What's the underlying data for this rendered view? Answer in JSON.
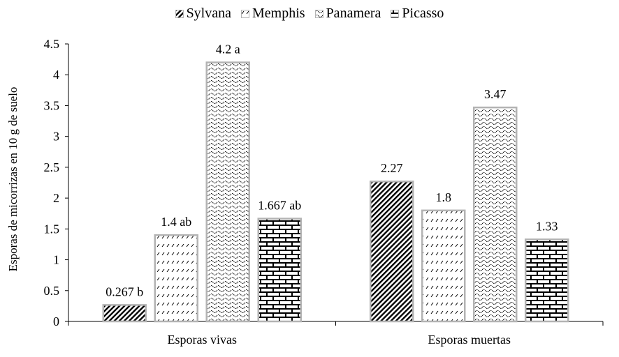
{
  "chart_data": {
    "type": "bar",
    "title": "",
    "xlabel": "",
    "ylabel": "Esporas de micorrizas en 10 g de suelo",
    "ylim": [
      0,
      4.5
    ],
    "yticks": [
      "0",
      "0.5",
      "1",
      "1.5",
      "2",
      "2.5",
      "3",
      "3.5",
      "4",
      "4.5"
    ],
    "grid": false,
    "legend_position": "top",
    "categories": [
      "Esporas vivas",
      "Esporas muertas"
    ],
    "series": [
      {
        "name": "Sylvana",
        "pattern": "diagonal-stripes",
        "values": [
          0.267,
          2.27
        ],
        "labels": [
          "0.267 b",
          "2.27"
        ]
      },
      {
        "name": "Memphis",
        "pattern": "dashed-lines",
        "values": [
          1.4,
          1.8
        ],
        "labels": [
          "1.4 ab",
          "1.8"
        ]
      },
      {
        "name": "Panamera",
        "pattern": "waves",
        "values": [
          4.2,
          3.47
        ],
        "labels": [
          "4.2 a",
          "3.47"
        ]
      },
      {
        "name": "Picasso",
        "pattern": "bricks",
        "values": [
          1.667,
          1.33
        ],
        "labels": [
          "1.667 ab",
          "1.33"
        ]
      }
    ]
  },
  "legend": {
    "items": [
      {
        "label": "Sylvana"
      },
      {
        "label": "Memphis"
      },
      {
        "label": "Panamera"
      },
      {
        "label": "Picasso"
      }
    ]
  },
  "colors": {
    "bar_border": "#b3b3b3",
    "axis": "#000000",
    "pattern_ink": "#000000"
  }
}
